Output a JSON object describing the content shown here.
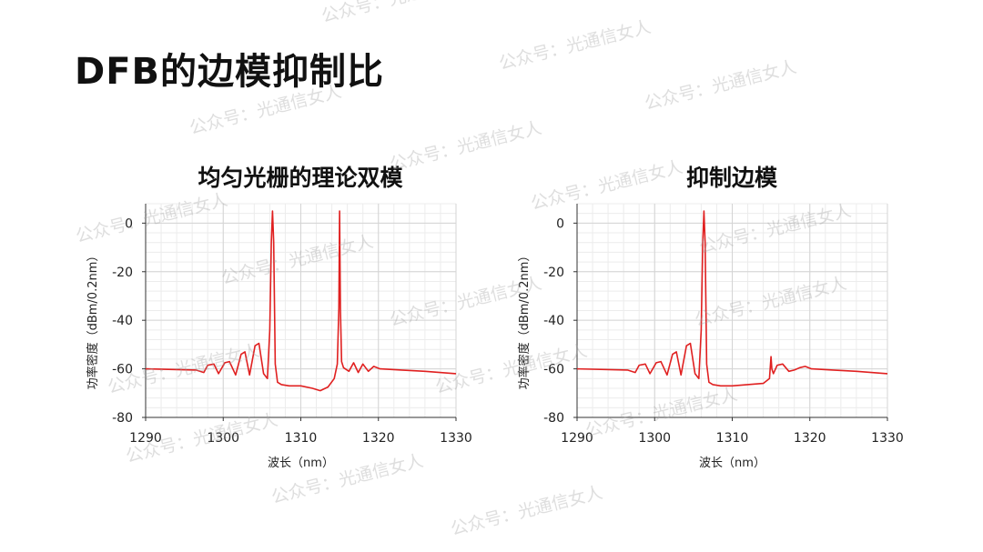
{
  "slide": {
    "title": "DFB的边模抑制比"
  },
  "chart_data": [
    {
      "type": "line",
      "title": "均匀光栅的理论双模",
      "xlabel": "波长（nm）",
      "ylabel": "功率密度（dBm/0.2nm）",
      "xlim": [
        1290,
        1330
      ],
      "ylim": [
        -80,
        8
      ],
      "xticks": [
        "1290",
        "1300",
        "1310",
        "1320",
        "1330"
      ],
      "yticks": [
        "0",
        "-20",
        "-40",
        "-60",
        "-80"
      ],
      "grid": true,
      "series": [
        {
          "color": "#e02020",
          "x": [
            1290,
            1296.5,
            1297.5,
            1298,
            1298.8,
            1299.4,
            1300.2,
            1300.8,
            1301.6,
            1302.3,
            1302.8,
            1303.4,
            1304.1,
            1304.6,
            1305.2,
            1305.7,
            1306.0,
            1306.2,
            1306.35,
            1306.5,
            1306.7,
            1307.0,
            1307.5,
            1308.5,
            1310,
            1311.5,
            1312.5,
            1313.5,
            1314.3,
            1314.7,
            1314.9,
            1315.0,
            1315.1,
            1315.25,
            1315.5,
            1316.2,
            1316.8,
            1317.4,
            1318.0,
            1318.7,
            1319.4,
            1320.2,
            1323,
            1326,
            1330
          ],
          "y": [
            -60,
            -60.5,
            -61.5,
            -58.5,
            -58,
            -62,
            -57.5,
            -57,
            -62.5,
            -54,
            -53,
            -62.5,
            -50.5,
            -49.5,
            -62,
            -64,
            -44,
            -8,
            5,
            -8,
            -58,
            -65.5,
            -66.5,
            -67,
            -67,
            -68,
            -69,
            -67.5,
            -64,
            -58,
            -35,
            5,
            -35,
            -57,
            -59.5,
            -61,
            -57.5,
            -61.5,
            -58,
            -61,
            -59,
            -60,
            -60.5,
            -61,
            -62
          ]
        }
      ]
    },
    {
      "type": "line",
      "title": "抑制边模",
      "xlabel": "波长（nm）",
      "ylabel": "功率密度（dBm/0.2nm）",
      "xlim": [
        1290,
        1330
      ],
      "ylim": [
        -80,
        8
      ],
      "xticks": [
        "1290",
        "1300",
        "1310",
        "1320",
        "1330"
      ],
      "yticks": [
        "0",
        "-20",
        "-40",
        "-60",
        "-80"
      ],
      "grid": true,
      "series": [
        {
          "color": "#e02020",
          "x": [
            1290,
            1296.5,
            1297.5,
            1298,
            1298.8,
            1299.4,
            1300.2,
            1300.8,
            1301.6,
            1302.3,
            1302.8,
            1303.4,
            1304.1,
            1304.6,
            1305.2,
            1305.7,
            1306.0,
            1306.2,
            1306.35,
            1306.5,
            1306.7,
            1307.0,
            1307.5,
            1308.5,
            1310,
            1312,
            1314,
            1314.8,
            1315.0,
            1315.1,
            1315.3,
            1315.8,
            1316.5,
            1317.3,
            1318.0,
            1318.7,
            1319.4,
            1320.2,
            1323,
            1326,
            1330
          ],
          "y": [
            -60,
            -60.5,
            -61.5,
            -58.5,
            -58,
            -62,
            -57.5,
            -57,
            -62.5,
            -54,
            -53,
            -62.5,
            -50.5,
            -49.5,
            -62,
            -64,
            -44,
            -8,
            5,
            -8,
            -58,
            -65.5,
            -66.5,
            -67,
            -67,
            -66.5,
            -66,
            -64,
            -55,
            -60,
            -62,
            -58.5,
            -58,
            -61,
            -60.5,
            -59.5,
            -59,
            -60,
            -60.5,
            -61,
            -62
          ]
        }
      ]
    }
  ],
  "watermark": {
    "text": "公众号：光通信女人"
  }
}
